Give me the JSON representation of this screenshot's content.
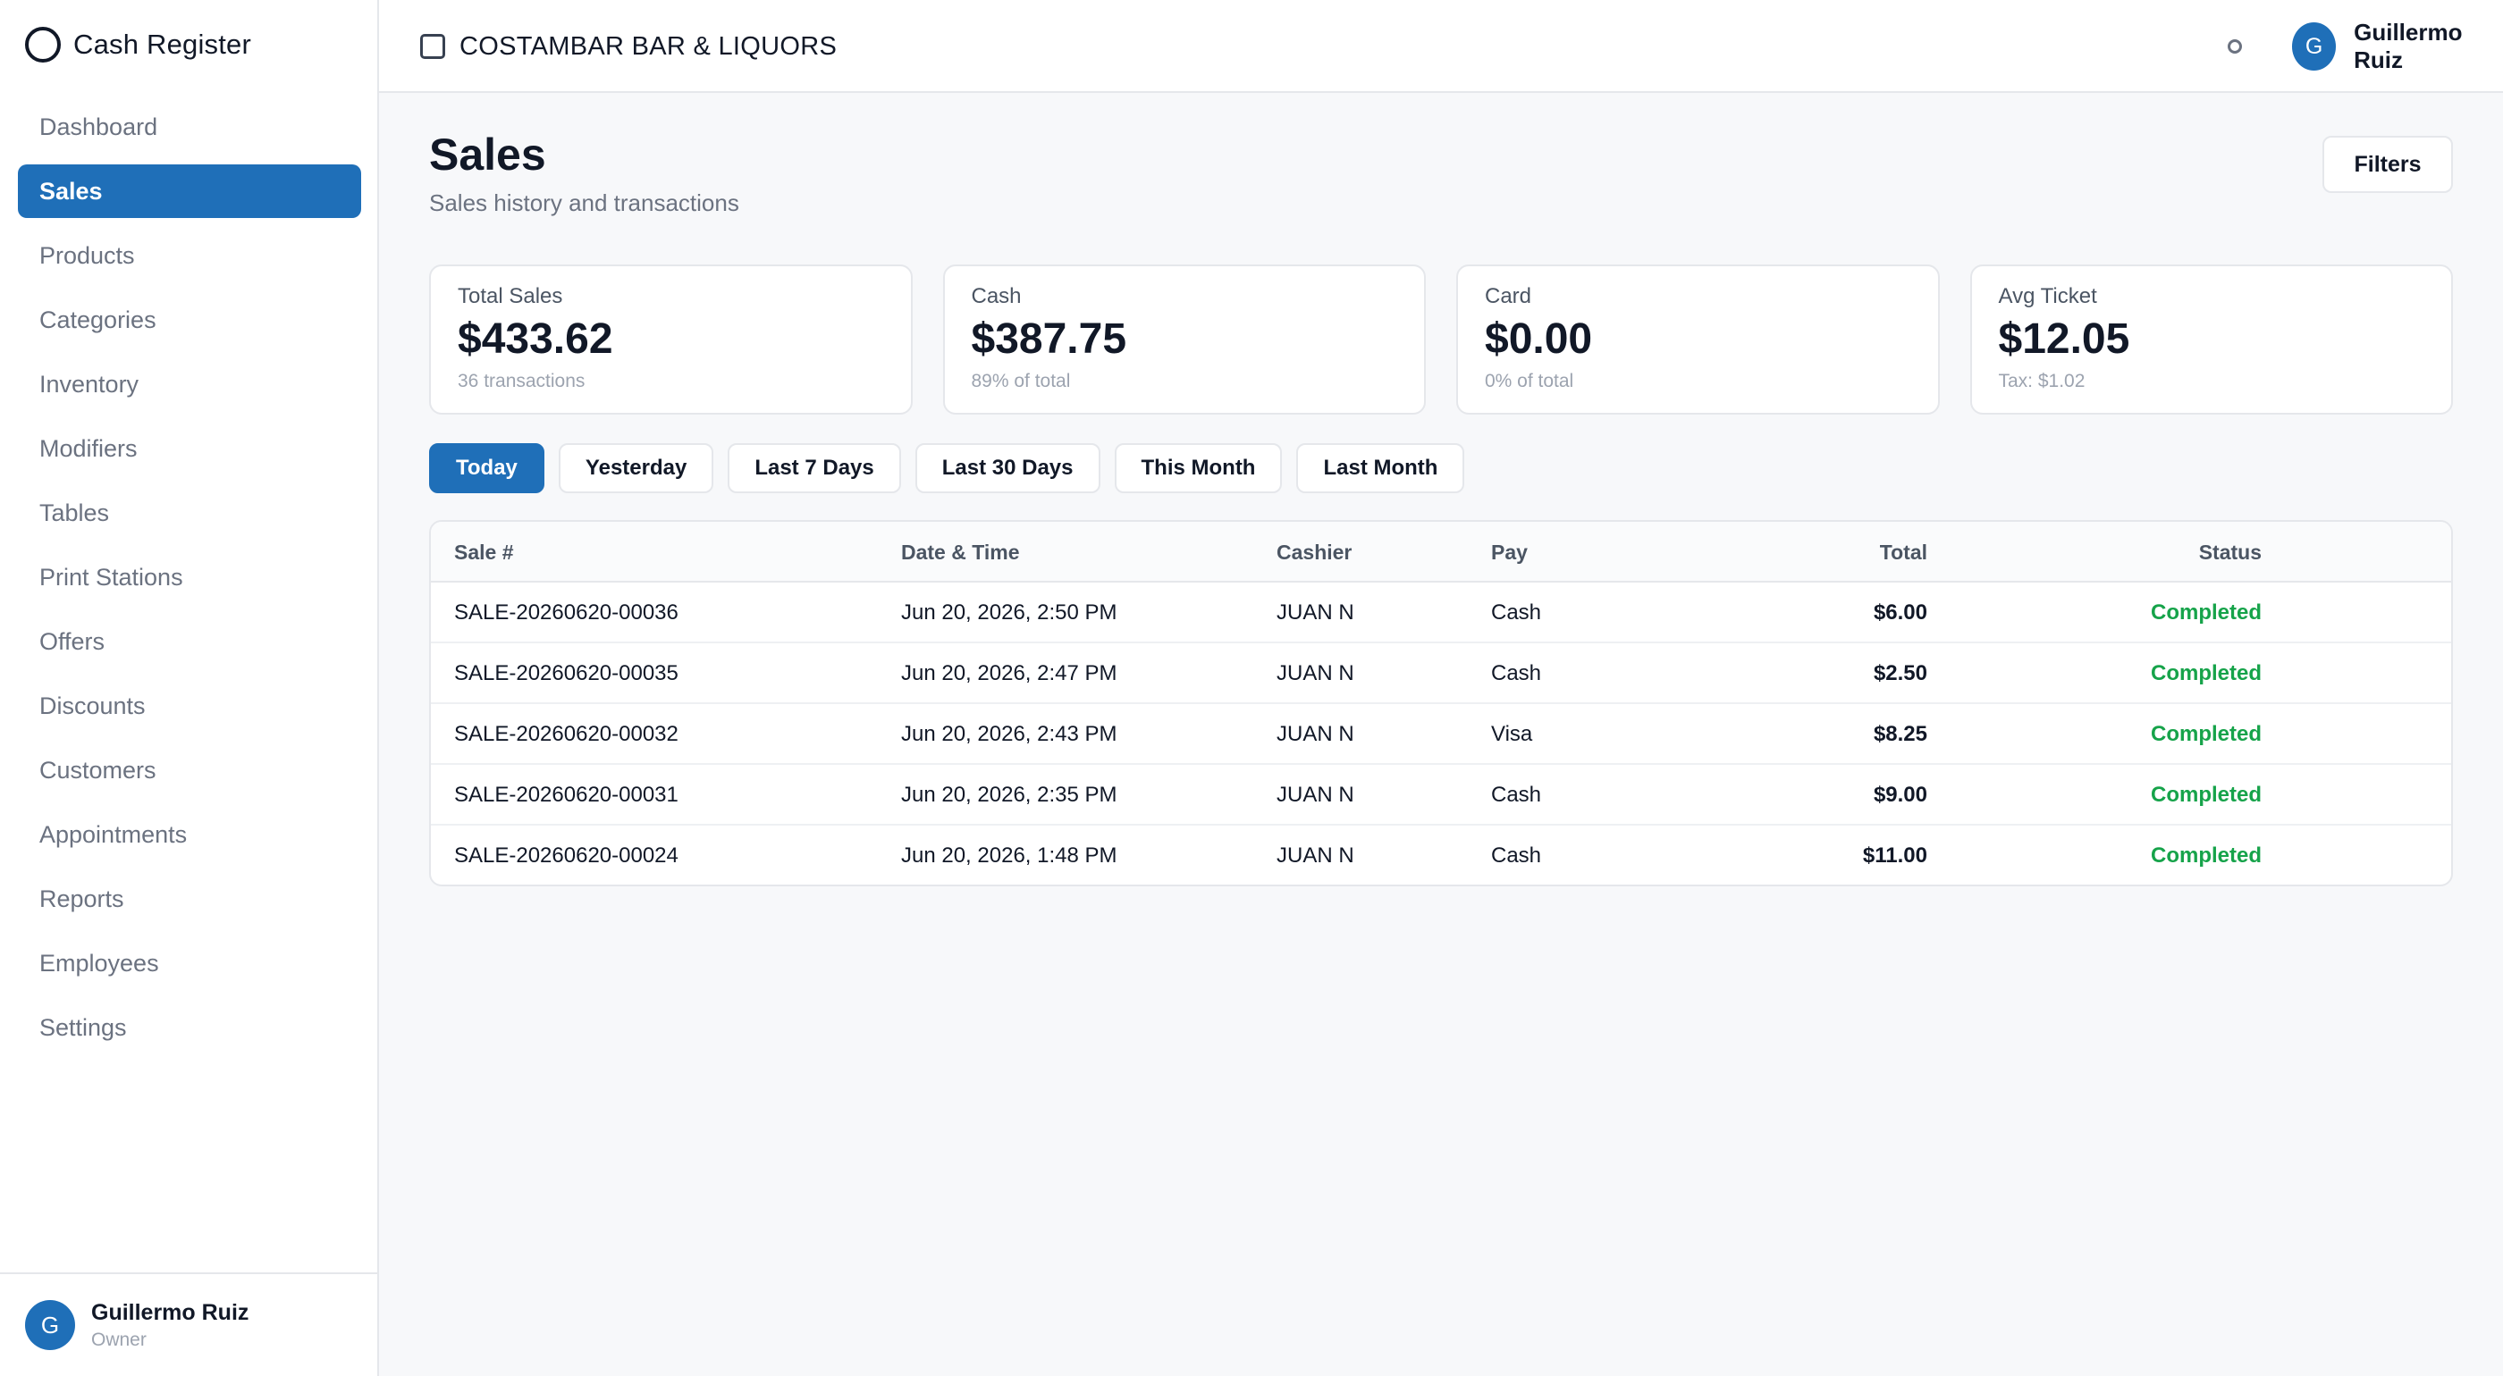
{
  "app": {
    "title": "Cash Register"
  },
  "sidebar": {
    "items": [
      {
        "label": "Dashboard",
        "active": false
      },
      {
        "label": "Sales",
        "active": true
      },
      {
        "label": "Products",
        "active": false
      },
      {
        "label": "Categories",
        "active": false
      },
      {
        "label": "Inventory",
        "active": false
      },
      {
        "label": "Modifiers",
        "active": false
      },
      {
        "label": "Tables",
        "active": false
      },
      {
        "label": "Print Stations",
        "active": false
      },
      {
        "label": "Offers",
        "active": false
      },
      {
        "label": "Discounts",
        "active": false
      },
      {
        "label": "Customers",
        "active": false
      },
      {
        "label": "Appointments",
        "active": false
      },
      {
        "label": "Reports",
        "active": false
      },
      {
        "label": "Employees",
        "active": false
      },
      {
        "label": "Settings",
        "active": false
      }
    ],
    "user": {
      "initial": "G",
      "name": "Guillermo Ruiz",
      "role": "Owner"
    }
  },
  "header": {
    "store_name": "COSTAMBAR BAR & LIQUORS",
    "user": {
      "initial": "G",
      "name": "Guillermo Ruiz"
    }
  },
  "page": {
    "title": "Sales",
    "subtitle": "Sales history and transactions",
    "filters_label": "Filters"
  },
  "stats": [
    {
      "label": "Total Sales",
      "value": "$433.62",
      "sub": "36 transactions"
    },
    {
      "label": "Cash",
      "value": "$387.75",
      "sub": "89% of total"
    },
    {
      "label": "Card",
      "value": "$0.00",
      "sub": "0% of total"
    },
    {
      "label": "Avg Ticket",
      "value": "$12.05",
      "sub": "Tax: $1.02"
    }
  ],
  "ranges": [
    {
      "label": "Today",
      "active": true
    },
    {
      "label": "Yesterday",
      "active": false
    },
    {
      "label": "Last 7 Days",
      "active": false
    },
    {
      "label": "Last 30 Days",
      "active": false
    },
    {
      "label": "This Month",
      "active": false
    },
    {
      "label": "Last Month",
      "active": false
    }
  ],
  "table": {
    "columns": {
      "sale": "Sale #",
      "date": "Date & Time",
      "cashier": "Cashier",
      "pay": "Pay",
      "total": "Total",
      "status": "Status"
    },
    "rows": [
      {
        "sale": "SALE-20260620-00036",
        "date": "Jun 20, 2026, 2:50 PM",
        "cashier": "JUAN N",
        "pay": "Cash",
        "total": "$6.00",
        "status": "Completed"
      },
      {
        "sale": "SALE-20260620-00035",
        "date": "Jun 20, 2026, 2:47 PM",
        "cashier": "JUAN N",
        "pay": "Cash",
        "total": "$2.50",
        "status": "Completed"
      },
      {
        "sale": "SALE-20260620-00032",
        "date": "Jun 20, 2026, 2:43 PM",
        "cashier": "JUAN N",
        "pay": "Visa",
        "total": "$8.25",
        "status": "Completed"
      },
      {
        "sale": "SALE-20260620-00031",
        "date": "Jun 20, 2026, 2:35 PM",
        "cashier": "JUAN N",
        "pay": "Cash",
        "total": "$9.00",
        "status": "Completed"
      },
      {
        "sale": "SALE-20260620-00024",
        "date": "Jun 20, 2026, 1:48 PM",
        "cashier": "JUAN N",
        "pay": "Cash",
        "total": "$11.00",
        "status": "Completed"
      }
    ]
  },
  "colors": {
    "accent": "#1f6fb8",
    "success": "#16a34a"
  }
}
